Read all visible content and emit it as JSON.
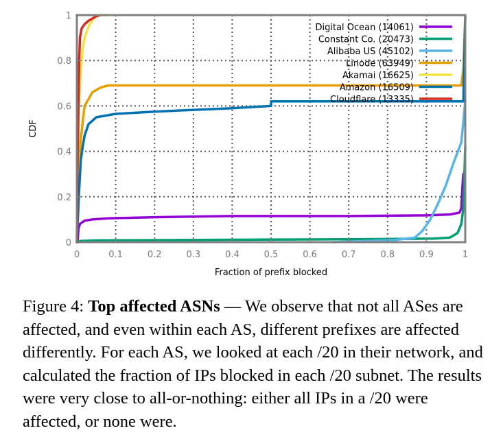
{
  "chart_data": {
    "type": "line",
    "xlabel": "Fraction of prefix blocked",
    "ylabel": "CDF",
    "xlim": [
      0,
      1
    ],
    "ylim": [
      0,
      1
    ],
    "x_ticks": [
      "0",
      "0.1",
      "0.2",
      "0.3",
      "0.4",
      "0.5",
      "0.6",
      "0.7",
      "0.8",
      "0.9",
      "1"
    ],
    "y_ticks": [
      "0",
      "0.2",
      "0.4",
      "0.6",
      "0.8",
      "1"
    ],
    "grid": true,
    "legend_position": "top-right",
    "series": [
      {
        "name": "Digital Ocean (14061)",
        "color": "#9400d3",
        "points": [
          [
            0.002,
            0.0
          ],
          [
            0.004,
            0.06
          ],
          [
            0.008,
            0.08
          ],
          [
            0.02,
            0.095
          ],
          [
            0.04,
            0.1
          ],
          [
            0.08,
            0.105
          ],
          [
            0.2,
            0.11
          ],
          [
            0.4,
            0.115
          ],
          [
            0.7,
            0.115
          ],
          [
            0.9,
            0.118
          ],
          [
            0.96,
            0.122
          ],
          [
            0.985,
            0.13
          ],
          [
            0.99,
            0.15
          ],
          [
            0.993,
            0.25
          ],
          [
            0.995,
            0.3
          ]
        ]
      },
      {
        "name": "Constant Co. (20473)",
        "color": "#009e73",
        "points": [
          [
            0.0,
            0.0
          ],
          [
            0.01,
            0.005
          ],
          [
            0.05,
            0.008
          ],
          [
            0.3,
            0.01
          ],
          [
            0.6,
            0.012
          ],
          [
            0.8,
            0.014
          ],
          [
            0.92,
            0.016
          ],
          [
            0.96,
            0.02
          ],
          [
            0.98,
            0.04
          ],
          [
            0.99,
            0.08
          ],
          [
            0.995,
            0.15
          ],
          [
            1.0,
            0.42
          ]
        ]
      },
      {
        "name": "Alibaba US (45102)",
        "color": "#56b4e9",
        "points": [
          [
            0.66,
            0.0
          ],
          [
            0.75,
            0.005
          ],
          [
            0.82,
            0.01
          ],
          [
            0.87,
            0.02
          ],
          [
            0.89,
            0.05
          ],
          [
            0.91,
            0.1
          ],
          [
            0.93,
            0.17
          ],
          [
            0.95,
            0.25
          ],
          [
            0.97,
            0.35
          ],
          [
            0.99,
            0.44
          ],
          [
            1.0,
            0.62
          ]
        ]
      },
      {
        "name": "Linode (63949)",
        "color": "#e69f00",
        "points": [
          [
            0.0,
            0.0
          ],
          [
            0.005,
            0.3
          ],
          [
            0.01,
            0.45
          ],
          [
            0.015,
            0.53
          ],
          [
            0.02,
            0.6
          ],
          [
            0.03,
            0.63
          ],
          [
            0.04,
            0.66
          ],
          [
            0.06,
            0.68
          ],
          [
            0.08,
            0.69
          ],
          [
            0.3,
            0.69
          ],
          [
            0.7,
            0.69
          ],
          [
            0.99,
            0.69
          ],
          [
            0.995,
            0.76
          ],
          [
            1.0,
            1.0
          ]
        ]
      },
      {
        "name": "Akamai (16625)",
        "color": "#f0e442",
        "points": [
          [
            0.0,
            0.0
          ],
          [
            0.005,
            0.6
          ],
          [
            0.01,
            0.75
          ],
          [
            0.015,
            0.85
          ],
          [
            0.02,
            0.9
          ],
          [
            0.03,
            0.95
          ],
          [
            0.045,
            0.99
          ],
          [
            0.06,
            1.0
          ],
          [
            0.08,
            1.0
          ]
        ]
      },
      {
        "name": "Amazon (16509)",
        "color": "#0072b2",
        "points": [
          [
            0.0,
            0.0
          ],
          [
            0.005,
            0.2
          ],
          [
            0.01,
            0.36
          ],
          [
            0.015,
            0.42
          ],
          [
            0.02,
            0.47
          ],
          [
            0.03,
            0.52
          ],
          [
            0.05,
            0.55
          ],
          [
            0.1,
            0.565
          ],
          [
            0.2,
            0.575
          ],
          [
            0.4,
            0.59
          ],
          [
            0.5,
            0.6
          ],
          [
            0.5,
            0.62
          ],
          [
            0.7,
            0.62
          ],
          [
            0.995,
            0.62
          ],
          [
            1.0,
            0.99
          ]
        ]
      },
      {
        "name": "Cloudflare (13335)",
        "color": "#d52a20",
        "points": [
          [
            0.0,
            0.0
          ],
          [
            0.002,
            0.35
          ],
          [
            0.004,
            0.6
          ],
          [
            0.006,
            0.8
          ],
          [
            0.008,
            0.9
          ],
          [
            0.012,
            0.94
          ],
          [
            0.02,
            0.96
          ],
          [
            0.03,
            0.975
          ],
          [
            0.05,
            0.995
          ],
          [
            0.06,
            1.0
          ]
        ]
      }
    ]
  },
  "caption": {
    "label": "Figure 4: ",
    "bold": "Top affected ASNs",
    "text": " — We observe that not all ASes are affected, and even within each AS, different prefixes are affected differently. For each AS, we looked at each /20 in their network, and calculated the fraction of IPs blocked in each /20 subnet. The results were very close to all-or-nothing: either all IPs in a /20 were affected, or none were."
  }
}
